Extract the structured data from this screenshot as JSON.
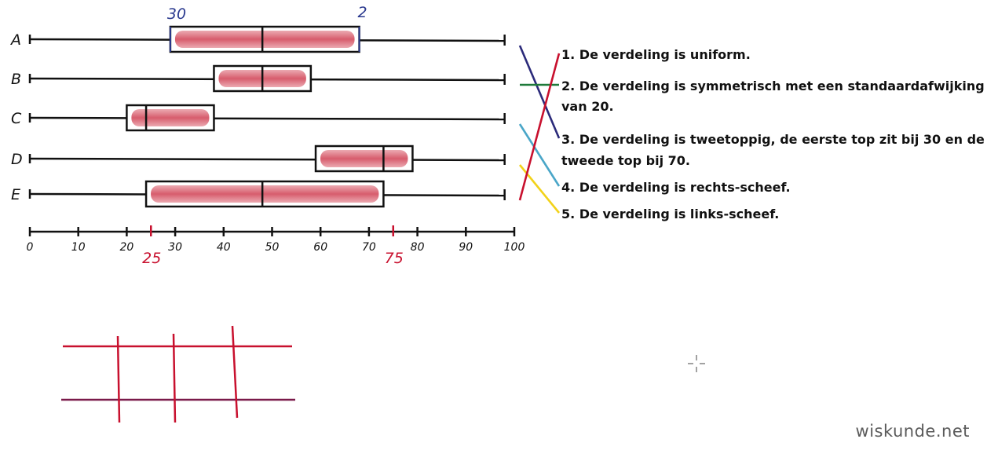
{
  "boxplots": [
    {
      "label": "A",
      "min": 0,
      "q1": 29,
      "median": 48,
      "q3": 68,
      "max": 98
    },
    {
      "label": "B",
      "min": 0,
      "q1": 38,
      "median": 48,
      "q3": 58,
      "max": 98
    },
    {
      "label": "C",
      "min": 0,
      "q1": 20,
      "median": 24,
      "q3": 38,
      "max": 98
    },
    {
      "label": "D",
      "min": 0,
      "q1": 59,
      "median": 73,
      "q3": 79,
      "max": 98
    },
    {
      "label": "E",
      "min": 0,
      "q1": 24,
      "median": 48,
      "q3": 73,
      "max": 98
    }
  ],
  "axis": {
    "min": 0,
    "max": 100,
    "ticks": [
      0,
      10,
      20,
      30,
      40,
      50,
      60,
      70,
      80,
      90,
      100
    ],
    "tick_labels": [
      "0",
      "10",
      "20",
      "30",
      "40",
      "50",
      "60",
      "70",
      "80",
      "90",
      "100"
    ]
  },
  "annotations": {
    "q1_note": "30",
    "q3_note": "2",
    "red_marks": [
      25,
      75
    ],
    "red_labels": [
      "25",
      "75"
    ]
  },
  "statements": [
    "1. De verdeling is uniform.",
    "2. De verdeling is symmetrisch met een standaardafwijking",
    "van 20.",
    "3. De verdeling is tweetoppig, de eerste top zit bij 30 en de",
    "tweede top bij 70.",
    "4. De verdeling is rechts-scheef.",
    "5. De verdeling is links-scheef."
  ],
  "links": [
    {
      "from": "A",
      "to": "3",
      "color": "#2b2a7a"
    },
    {
      "from": "B",
      "to": "2",
      "color": "#1e7a3a"
    },
    {
      "from": "C",
      "to": "4",
      "color": "#4aa6c8"
    },
    {
      "from": "D",
      "to": "5",
      "color": "#f2d21a"
    },
    {
      "from": "E",
      "to": "1",
      "color": "#c8102e"
    }
  ],
  "watermark": "wiskunde.net"
}
